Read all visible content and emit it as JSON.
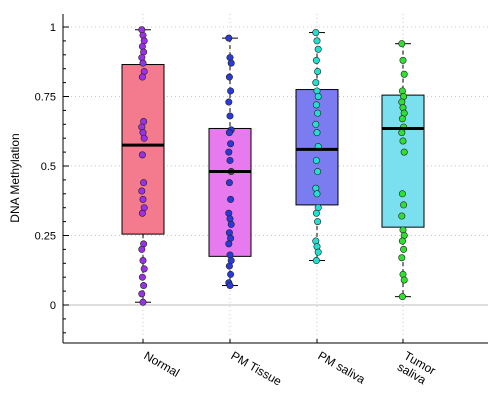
{
  "chart_data": {
    "type": "box",
    "ylabel": "DNA Methylation",
    "ylim": [
      -0.14,
      1.05
    ],
    "yticks": [
      "0",
      "0.25",
      "0.5",
      "0.75",
      "1"
    ],
    "ytick_values": [
      0,
      0.25,
      0.5,
      0.75,
      1
    ],
    "grid": true,
    "groups": [
      {
        "label": [
          "Normal"
        ],
        "fill": "#f47a8e",
        "point_color": "#9b30e8",
        "whisker": [
          0.01,
          0.99
        ],
        "q1": 0.255,
        "median": 0.575,
        "q3": 0.865,
        "points": [
          0.99,
          0.97,
          0.95,
          0.93,
          0.91,
          0.89,
          0.87,
          0.84,
          0.82,
          0.66,
          0.64,
          0.62,
          0.6,
          0.54,
          0.44,
          0.41,
          0.38,
          0.35,
          0.33,
          0.22,
          0.2,
          0.16,
          0.13,
          0.1,
          0.07,
          0.04,
          0.01
        ]
      },
      {
        "label": [
          "PM Tissue"
        ],
        "fill": "#e87af0",
        "point_color": "#2a3ad8",
        "whisker": [
          0.07,
          0.96
        ],
        "q1": 0.175,
        "median": 0.48,
        "q3": 0.635,
        "points": [
          0.96,
          0.89,
          0.87,
          0.82,
          0.77,
          0.73,
          0.68,
          0.63,
          0.62,
          0.58,
          0.55,
          0.52,
          0.48,
          0.44,
          0.38,
          0.33,
          0.31,
          0.29,
          0.26,
          0.24,
          0.22,
          0.18,
          0.16,
          0.14,
          0.11,
          0.08,
          0.07
        ]
      },
      {
        "label": [
          "PM saliva"
        ],
        "fill": "#7b7cf0",
        "point_color": "#22e0d0",
        "whisker": [
          0.16,
          0.98
        ],
        "q1": 0.36,
        "median": 0.56,
        "q3": 0.775,
        "points": [
          0.98,
          0.95,
          0.92,
          0.88,
          0.84,
          0.8,
          0.77,
          0.75,
          0.72,
          0.69,
          0.65,
          0.62,
          0.57,
          0.52,
          0.48,
          0.42,
          0.4,
          0.35,
          0.33,
          0.3,
          0.23,
          0.21,
          0.19,
          0.16
        ]
      },
      {
        "label": [
          "Tumor",
          "saliva"
        ],
        "fill": "#7ae0f0",
        "point_color": "#30e030",
        "whisker": [
          0.03,
          0.94
        ],
        "q1": 0.28,
        "median": 0.635,
        "q3": 0.755,
        "points": [
          0.94,
          0.88,
          0.83,
          0.77,
          0.75,
          0.73,
          0.71,
          0.69,
          0.67,
          0.64,
          0.62,
          0.59,
          0.55,
          0.4,
          0.36,
          0.32,
          0.27,
          0.25,
          0.23,
          0.2,
          0.17,
          0.11,
          0.09,
          0.03
        ]
      }
    ]
  }
}
